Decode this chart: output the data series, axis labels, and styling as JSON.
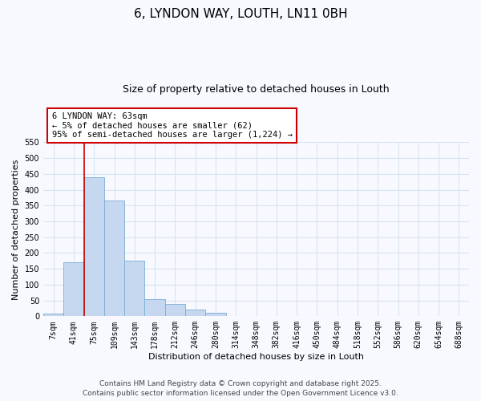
{
  "title": "6, LYNDON WAY, LOUTH, LN11 0BH",
  "subtitle": "Size of property relative to detached houses in Louth",
  "xlabel": "Distribution of detached houses by size in Louth",
  "ylabel": "Number of detached properties",
  "bar_labels": [
    "7sqm",
    "41sqm",
    "75sqm",
    "109sqm",
    "143sqm",
    "178sqm",
    "212sqm",
    "246sqm",
    "280sqm",
    "314sqm",
    "348sqm",
    "382sqm",
    "416sqm",
    "450sqm",
    "484sqm",
    "518sqm",
    "552sqm",
    "586sqm",
    "620sqm",
    "654sqm",
    "688sqm"
  ],
  "bar_values": [
    8,
    170,
    440,
    365,
    175,
    55,
    40,
    22,
    10,
    2,
    1,
    0,
    0,
    0,
    0,
    0,
    0,
    0,
    0,
    0,
    0
  ],
  "bar_color": "#c6d8ef",
  "bar_edge_color": "#7aacd4",
  "ylim": [
    0,
    550
  ],
  "yticks": [
    0,
    50,
    100,
    150,
    200,
    250,
    300,
    350,
    400,
    450,
    500,
    550
  ],
  "vline_x": 1.5,
  "vline_color": "#cc0000",
  "annotation_box_text_line1": "6 LYNDON WAY: 63sqm",
  "annotation_box_text_line2": "← 5% of detached houses are smaller (62)",
  "annotation_box_text_line3": "95% of semi-detached houses are larger (1,224) →",
  "annotation_box_color": "#cc0000",
  "annotation_box_facecolor": "white",
  "footnote1": "Contains HM Land Registry data © Crown copyright and database right 2025.",
  "footnote2": "Contains public sector information licensed under the Open Government Licence v3.0.",
  "bg_color": "#f7f9ff",
  "grid_color": "#d8e4f0",
  "title_fontsize": 11,
  "subtitle_fontsize": 9,
  "axis_label_fontsize": 8,
  "tick_fontsize": 7,
  "annotation_fontsize": 7.5,
  "footnote_fontsize": 6.5
}
